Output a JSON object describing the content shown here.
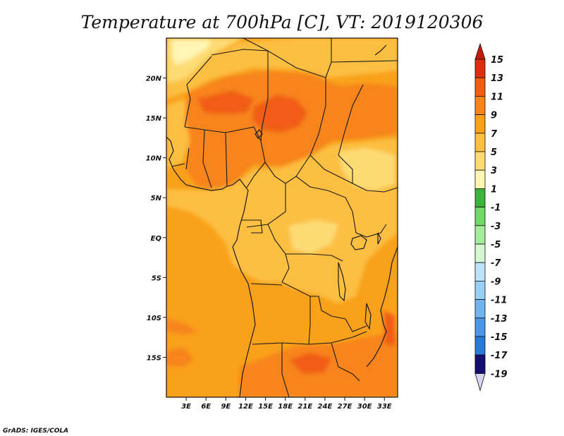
{
  "title": "Temperature at 700hPa [C], VT: 2019120306",
  "credit": "GrADS: IGES/COLA",
  "map": {
    "lon_range": [
      0,
      35
    ],
    "lat_range": [
      -20,
      25
    ],
    "lat_ticks": [
      {
        "lat": 20,
        "label": "20N"
      },
      {
        "lat": 15,
        "label": "15N"
      },
      {
        "lat": 10,
        "label": "10N"
      },
      {
        "lat": 5,
        "label": "5N"
      },
      {
        "lat": 0,
        "label": "EQ"
      },
      {
        "lat": -5,
        "label": "5S"
      },
      {
        "lat": -10,
        "label": "10S"
      },
      {
        "lat": -15,
        "label": "15S"
      }
    ],
    "lon_ticks": [
      {
        "lon": 3,
        "label": "3E"
      },
      {
        "lon": 6,
        "label": "6E"
      },
      {
        "lon": 9,
        "label": "9E"
      },
      {
        "lon": 12,
        "label": "12E"
      },
      {
        "lon": 15,
        "label": "15E"
      },
      {
        "lon": 18,
        "label": "18E"
      },
      {
        "lon": 21,
        "label": "21E"
      },
      {
        "lon": 24,
        "label": "24E"
      },
      {
        "lon": 27,
        "label": "27E"
      },
      {
        "lon": 30,
        "label": "30E"
      },
      {
        "lon": 33,
        "label": "33E"
      }
    ],
    "base_color": "#f9a11b"
  },
  "colorbar": {
    "levels": [
      {
        "label": "15",
        "color": "#dc2e10"
      },
      {
        "label": "13",
        "color": "#f15d12"
      },
      {
        "label": "11",
        "color": "#f7841a"
      },
      {
        "label": "9",
        "color": "#f9a11b"
      },
      {
        "label": "7",
        "color": "#fcbf42"
      },
      {
        "label": "5",
        "color": "#fddc75"
      },
      {
        "label": "3",
        "color": "#fff5b4"
      },
      {
        "label": "1",
        "color": "#3cb43c"
      },
      {
        "label": "-1",
        "color": "#70d96a"
      },
      {
        "label": "-3",
        "color": "#a5eb9c"
      },
      {
        "label": "-5",
        "color": "#d7f5d2"
      },
      {
        "label": "-7",
        "color": "#bce3f7"
      },
      {
        "label": "-9",
        "color": "#9ad0f4"
      },
      {
        "label": "-11",
        "color": "#72b4ef"
      },
      {
        "label": "-13",
        "color": "#4c97e8"
      },
      {
        "label": "-15",
        "color": "#2b79d9"
      },
      {
        "label": "-17",
        "color": "#1558c0"
      },
      {
        "label": "-19",
        "color": "#0a3a98"
      }
    ],
    "top_color": "#c41b0c",
    "bottom_color": "#d7d5f2",
    "lowest_color": "#120f6e"
  }
}
